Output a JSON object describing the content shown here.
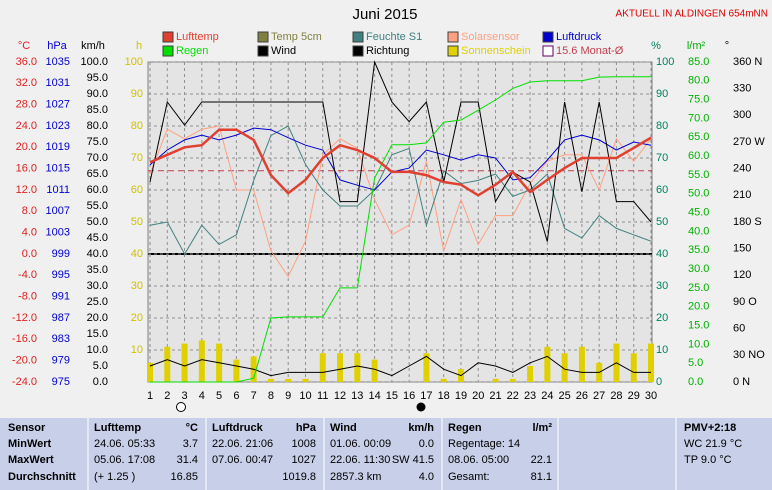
{
  "chart_data": {
    "type": "line",
    "title": "Juni 2015",
    "subtitle": "AKTUELL IN ALDINGEN 654mNN",
    "x": [
      1,
      2,
      3,
      4,
      5,
      6,
      7,
      8,
      9,
      10,
      11,
      12,
      13,
      14,
      15,
      16,
      17,
      18,
      19,
      20,
      21,
      22,
      23,
      24,
      25,
      26,
      27,
      28,
      29,
      30
    ],
    "grid": true,
    "axes": {
      "temp": {
        "label": "°C",
        "color": "#e02020",
        "lim": [
          -24,
          36
        ],
        "ticks": [
          {
            "value": -24,
            "label": "-24.0"
          },
          {
            "value": -20,
            "label": "-20.0"
          },
          {
            "value": -16,
            "label": "-16.0"
          },
          {
            "value": -12,
            "label": "-12.0"
          },
          {
            "value": -8,
            "label": "-8.0"
          },
          {
            "value": -4,
            "label": "-4.0"
          },
          {
            "value": 0,
            "label": "0.0"
          },
          {
            "value": 4,
            "label": "4.0"
          },
          {
            "value": 8,
            "label": "8.0"
          },
          {
            "value": 12,
            "label": "12.0"
          },
          {
            "value": 16,
            "label": "16.0"
          },
          {
            "value": 20,
            "label": "20.0"
          },
          {
            "value": 24,
            "label": "24.0"
          },
          {
            "value": 28,
            "label": "28.0"
          },
          {
            "value": 32,
            "label": "32.0"
          },
          {
            "value": 36,
            "label": "36.0"
          }
        ]
      },
      "hpa": {
        "label": "hPa",
        "color": "#0000d0",
        "lim": [
          975,
          1035
        ],
        "ticks": [
          975,
          979,
          983,
          987,
          991,
          995,
          999,
          1003,
          1007,
          1011,
          1015,
          1019,
          1023,
          1027,
          1031,
          1035
        ]
      },
      "kmh": {
        "label": "km/h",
        "color": "#000000",
        "lim": [
          0,
          100
        ],
        "ticks": [
          {
            "value": 0,
            "label": "0.0"
          },
          {
            "value": 5,
            "label": "5.0"
          },
          {
            "value": 10,
            "label": "10.0"
          },
          {
            "value": 15,
            "label": "15.0"
          },
          {
            "value": 20,
            "label": "20.0"
          },
          {
            "value": 25,
            "label": "25.0"
          },
          {
            "value": 30,
            "label": "30.0"
          },
          {
            "value": 35,
            "label": "35.0"
          },
          {
            "value": 40,
            "label": "40.0"
          },
          {
            "value": 45,
            "label": "45.0"
          },
          {
            "value": 50,
            "label": "50.0"
          },
          {
            "value": 55,
            "label": "55.0"
          },
          {
            "value": 60,
            "label": "60.0"
          },
          {
            "value": 65,
            "label": "65.0"
          },
          {
            "value": 70,
            "label": "70.0"
          },
          {
            "value": 75,
            "label": "75.0"
          },
          {
            "value": 80,
            "label": "80.0"
          },
          {
            "value": 85,
            "label": "85.0"
          },
          {
            "value": 90,
            "label": "90.0"
          },
          {
            "value": 95,
            "label": "95.0"
          },
          {
            "value": 100,
            "label": "100.0"
          }
        ]
      },
      "h": {
        "label": "h",
        "color": "#d0c000",
        "lim": [
          0,
          100
        ],
        "ticks": [
          10,
          20,
          30,
          40,
          50,
          60,
          70,
          80,
          90,
          100
        ]
      },
      "pct": {
        "label": "%",
        "color": "#008060",
        "lim": [
          0,
          100
        ],
        "ticks": [
          0,
          10,
          20,
          30,
          40,
          50,
          60,
          70,
          80,
          90,
          100
        ]
      },
      "rain": {
        "label": "l/m²",
        "color": "#00b000",
        "lim": [
          0,
          85
        ],
        "ticks": [
          {
            "value": 0,
            "label": "0.0"
          },
          {
            "value": 5,
            "label": "5.0"
          },
          {
            "value": 10,
            "label": "10.0"
          },
          {
            "value": 15,
            "label": "15.0"
          },
          {
            "value": 20,
            "label": "20.0"
          },
          {
            "value": 25,
            "label": "25.0"
          },
          {
            "value": 30,
            "label": "30.0"
          },
          {
            "value": 35,
            "label": "35.0"
          },
          {
            "value": 40,
            "label": "40.0"
          },
          {
            "value": 45,
            "label": "45.0"
          },
          {
            "value": 50,
            "label": "50.0"
          },
          {
            "value": 55,
            "label": "55.0"
          },
          {
            "value": 60,
            "label": "60.0"
          },
          {
            "value": 65,
            "label": "65.0"
          },
          {
            "value": 70,
            "label": "70.0"
          },
          {
            "value": 75,
            "label": "75.0"
          },
          {
            "value": 80,
            "label": "80.0"
          },
          {
            "value": 85,
            "label": "85.0"
          }
        ]
      },
      "dir": {
        "label": "°",
        "color": "#000000",
        "lim": [
          0,
          360
        ],
        "ticks": [
          {
            "value": 0,
            "label": "0  N"
          },
          {
            "value": 30,
            "label": "30  NO"
          },
          60,
          {
            "value": 90,
            "label": "90  O"
          },
          120,
          150,
          {
            "value": 180,
            "label": "180 S"
          },
          210,
          240,
          {
            "value": 270,
            "label": "270 W"
          },
          300,
          330,
          {
            "value": 360,
            "label": "360 N"
          }
        ]
      }
    },
    "series": [
      {
        "name": "Lufttemp",
        "color": "#e04030",
        "axis": "temp",
        "values": [
          17.2,
          18.6,
          20.0,
          20.4,
          23.3,
          23.3,
          21.4,
          14.8,
          11.4,
          13.9,
          18.0,
          20.4,
          19.5,
          18.0,
          15.4,
          15.4,
          14.8,
          13.5,
          13.0,
          11.0,
          13.0,
          15.4,
          11.6,
          13.9,
          16.1,
          18.0,
          18.0,
          18.0,
          19.9,
          21.8
        ]
      },
      {
        "name": "Temp 5cm",
        "color": "#808040"
      },
      {
        "name": "Feuchte S1",
        "color": "#408080",
        "axis": "pct",
        "values": [
          49,
          50,
          40,
          49,
          43,
          46,
          63,
          77,
          80,
          68,
          60,
          55,
          55,
          60,
          71,
          73,
          49,
          66,
          62,
          63,
          65,
          58,
          60,
          65,
          48,
          45,
          52,
          48,
          46,
          44
        ]
      },
      {
        "name": "Solarsensor",
        "color": "#ffa080",
        "axis": "pct",
        "values": [
          65,
          79,
          76,
          79,
          80,
          60,
          60,
          41,
          33,
          44,
          71,
          76,
          73,
          57,
          46,
          49,
          69,
          41,
          57,
          43,
          52,
          52,
          62,
          69,
          71,
          71,
          60,
          76,
          69,
          76
        ]
      },
      {
        "name": "Luftdruck",
        "color": "#0000d0",
        "axis": "hpa",
        "values": [
          1015.7,
          1018.5,
          1020.4,
          1021.3,
          1020.4,
          1021.3,
          1022.6,
          1022.3,
          1020.8,
          1019.4,
          1018.5,
          1012.9,
          1011.9,
          1011.0,
          1014.4,
          1015.1,
          1018.5,
          1017.6,
          1016.6,
          1017.6,
          1017.0,
          1012.9,
          1013.3,
          1016.6,
          1020.4,
          1021.3,
          1020.4,
          1018.5,
          1020.0,
          1019.4
        ]
      },
      {
        "name": "Regen",
        "color": "#00e000",
        "axis": "rain",
        "values": [
          0,
          0,
          0,
          0,
          0,
          0,
          1,
          17,
          17.3,
          17.3,
          17.3,
          25,
          25,
          54.2,
          63,
          63,
          63.5,
          69,
          69.6,
          72.2,
          74.9,
          78,
          79.7,
          80,
          80,
          80,
          81,
          81.1,
          81.1,
          81.1
        ]
      },
      {
        "name": "Wind",
        "color": "#000000",
        "axis": "kmh",
        "values": [
          5,
          7,
          5,
          7,
          6,
          5,
          4,
          2,
          3,
          3,
          3,
          4,
          5,
          4,
          2,
          5,
          8,
          4,
          2,
          6,
          5,
          3,
          6,
          8,
          4,
          3,
          3,
          6,
          3,
          3
        ]
      },
      {
        "name": "Richtung",
        "color": "#000000",
        "axis": "dir",
        "values": [
          225,
          315,
          289,
          315,
          315,
          315,
          315,
          315,
          315,
          315,
          315,
          203,
          203,
          360,
          315,
          293,
          315,
          225,
          315,
          315,
          203,
          236,
          225,
          158,
          315,
          214,
          315,
          203,
          203,
          180
        ]
      },
      {
        "name": "Sonnenschein",
        "color": "#e0d000",
        "axis": "h",
        "kind": "bar",
        "values": [
          6,
          11,
          12,
          13,
          12,
          7,
          8,
          1,
          1,
          1,
          9,
          9,
          9,
          7,
          0,
          0,
          9,
          1,
          4,
          0,
          1,
          1,
          5,
          11,
          9,
          11,
          6,
          12,
          9,
          12
        ]
      },
      {
        "name": "15.6 Monat-Ø",
        "color": "#c04050",
        "axis": "temp",
        "value": 15.6
      }
    ]
  },
  "table": {
    "corner": "Sensor",
    "row_labels": [
      "MinWert",
      "MaxWert",
      "Durchschnitt"
    ],
    "columns": [
      {
        "title": "Lufttemp",
        "unit": "°C",
        "rows": [
          {
            "left": "24.06.  05:33",
            "right": "3.7"
          },
          {
            "left": "05.06.  17:08",
            "right": "31.4"
          },
          {
            "left": "(+ 1.25 )",
            "right": "16.85"
          }
        ]
      },
      {
        "title": "Luftdruck",
        "unit": "hPa",
        "rows": [
          {
            "left": "22.06.  21:06",
            "right": "1008"
          },
          {
            "left": "07.06.  00:47",
            "right": "1027"
          },
          {
            "right": "1019.8"
          }
        ]
      },
      {
        "title": "Wind",
        "unit": "km/h",
        "rows": [
          {
            "left": "01.06.  00:09",
            "right": "0.0"
          },
          {
            "left": "22.06.  11:30",
            "right": "SW 41.5"
          },
          {
            "left": "2857.3 km",
            "right": "4.0"
          }
        ]
      },
      {
        "title": "Regen",
        "unit": "l/m²",
        "rows": [
          {
            "left": "Regentage: 14"
          },
          {
            "left": "08.06.  05:00",
            "right": "22.1"
          },
          {
            "left": "Gesamt:",
            "right": "81.1"
          }
        ]
      }
    ],
    "side": [
      "PMV+2:18",
      "WC 21.9 °C",
      "TP 9.0 °C"
    ]
  }
}
